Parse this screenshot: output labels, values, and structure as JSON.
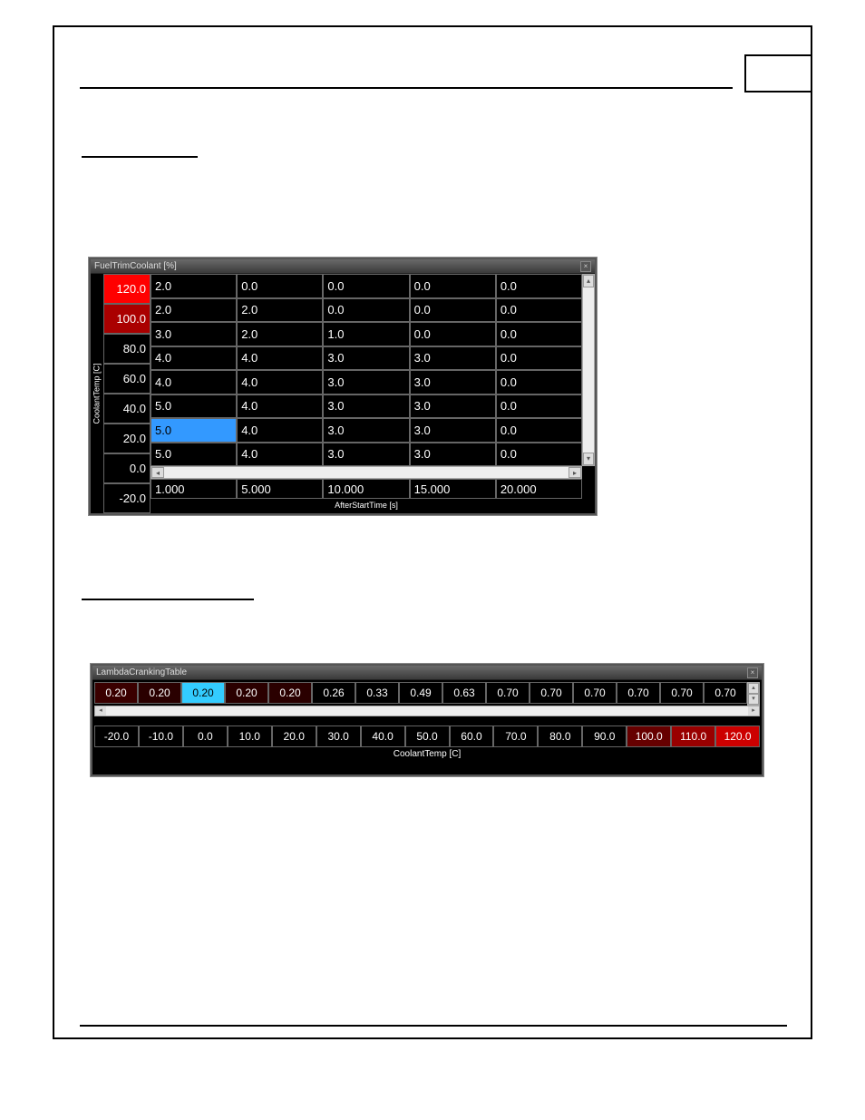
{
  "fuelTrimCoolant": {
    "title": "FuelTrimCoolant [%]",
    "yAxisLabel": "CoolantTemp [C]",
    "xAxisLabel": "AfterStartTime [s]",
    "yAxis": [
      {
        "v": "120.0",
        "cls": "hot1"
      },
      {
        "v": "100.0",
        "cls": "hot2"
      },
      {
        "v": "80.0",
        "cls": ""
      },
      {
        "v": "60.0",
        "cls": ""
      },
      {
        "v": "40.0",
        "cls": ""
      },
      {
        "v": "20.0",
        "cls": ""
      },
      {
        "v": "0.0",
        "cls": ""
      },
      {
        "v": "-20.0",
        "cls": ""
      }
    ],
    "grid": [
      [
        "2.0",
        "0.0",
        "0.0",
        "0.0",
        "0.0"
      ],
      [
        "2.0",
        "2.0",
        "0.0",
        "0.0",
        "0.0"
      ],
      [
        "3.0",
        "2.0",
        "1.0",
        "0.0",
        "0.0"
      ],
      [
        "4.0",
        "4.0",
        "3.0",
        "3.0",
        "0.0"
      ],
      [
        "4.0",
        "4.0",
        "3.0",
        "3.0",
        "0.0"
      ],
      [
        "5.0",
        "4.0",
        "3.0",
        "3.0",
        "0.0"
      ],
      [
        "5.0",
        "4.0",
        "3.0",
        "3.0",
        "0.0"
      ],
      [
        "5.0",
        "4.0",
        "3.0",
        "3.0",
        "0.0"
      ]
    ],
    "selected": {
      "row": 6,
      "col": 0
    },
    "xAxis": [
      "1.000",
      "5.000",
      "10.000",
      "15.000",
      "20.000"
    ]
  },
  "lambdaCranking": {
    "title": "LambdaCrankingTable",
    "values": [
      {
        "v": "0.20",
        "cls": "dark1"
      },
      {
        "v": "0.20",
        "cls": "dark2"
      },
      {
        "v": "0.20",
        "cls": "sel"
      },
      {
        "v": "0.20",
        "cls": "dark2"
      },
      {
        "v": "0.20",
        "cls": "dark2"
      },
      {
        "v": "0.26",
        "cls": ""
      },
      {
        "v": "0.33",
        "cls": ""
      },
      {
        "v": "0.49",
        "cls": ""
      },
      {
        "v": "0.63",
        "cls": ""
      },
      {
        "v": "0.70",
        "cls": ""
      },
      {
        "v": "0.70",
        "cls": ""
      },
      {
        "v": "0.70",
        "cls": ""
      },
      {
        "v": "0.70",
        "cls": ""
      },
      {
        "v": "0.70",
        "cls": ""
      },
      {
        "v": "0.70",
        "cls": ""
      }
    ],
    "axis": [
      {
        "v": "-20.0",
        "cls": ""
      },
      {
        "v": "-10.0",
        "cls": ""
      },
      {
        "v": "0.0",
        "cls": ""
      },
      {
        "v": "10.0",
        "cls": ""
      },
      {
        "v": "20.0",
        "cls": ""
      },
      {
        "v": "30.0",
        "cls": ""
      },
      {
        "v": "40.0",
        "cls": ""
      },
      {
        "v": "50.0",
        "cls": ""
      },
      {
        "v": "60.0",
        "cls": ""
      },
      {
        "v": "70.0",
        "cls": ""
      },
      {
        "v": "80.0",
        "cls": ""
      },
      {
        "v": "90.0",
        "cls": ""
      },
      {
        "v": "100.0",
        "cls": "hot1"
      },
      {
        "v": "110.0",
        "cls": "hot2"
      },
      {
        "v": "120.0",
        "cls": "hot3"
      }
    ],
    "xAxisLabel": "CoolantTemp [C]"
  },
  "scroll": {
    "up": "▴",
    "down": "▾",
    "left": "◂",
    "right": "▸"
  },
  "close": "×"
}
